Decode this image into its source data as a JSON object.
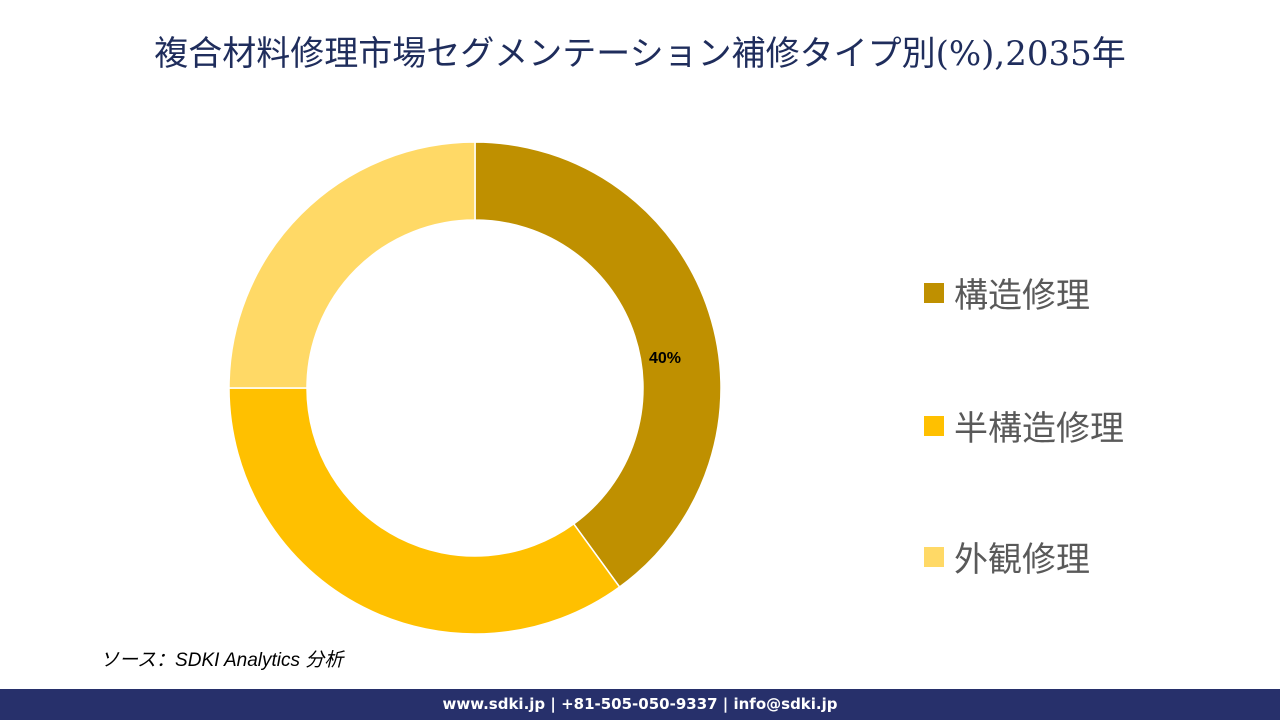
{
  "title": "複合材料修理市場セグメンテーション補修タイプ別(%),2035年",
  "chart_data": {
    "type": "pie",
    "subtype": "donut",
    "title": "複合材料修理市場セグメンテーション補修タイプ別(%),2035年",
    "categories": [
      "構造修理",
      "半構造修理",
      "外観修理"
    ],
    "values": [
      40,
      35,
      25
    ],
    "colors": [
      "#bf9000",
      "#ffc000",
      "#ffd966"
    ],
    "data_labels": [
      {
        "category": "構造修理",
        "text": "40%"
      }
    ],
    "legend_position": "right",
    "start_angle_deg": 0,
    "direction": "clockwise"
  },
  "legend": {
    "items": [
      {
        "label": "構造修理",
        "color": "#bf9000"
      },
      {
        "label": "半構造修理",
        "color": "#ffc000"
      },
      {
        "label": "外観修理",
        "color": "#ffd966"
      }
    ]
  },
  "labels": {
    "segment1": "40%"
  },
  "source": "ソース：SDKI Analytics 分析",
  "footer": {
    "text": "www.sdki.jp | +81-505-050-9337 | info@sdki.jp"
  }
}
